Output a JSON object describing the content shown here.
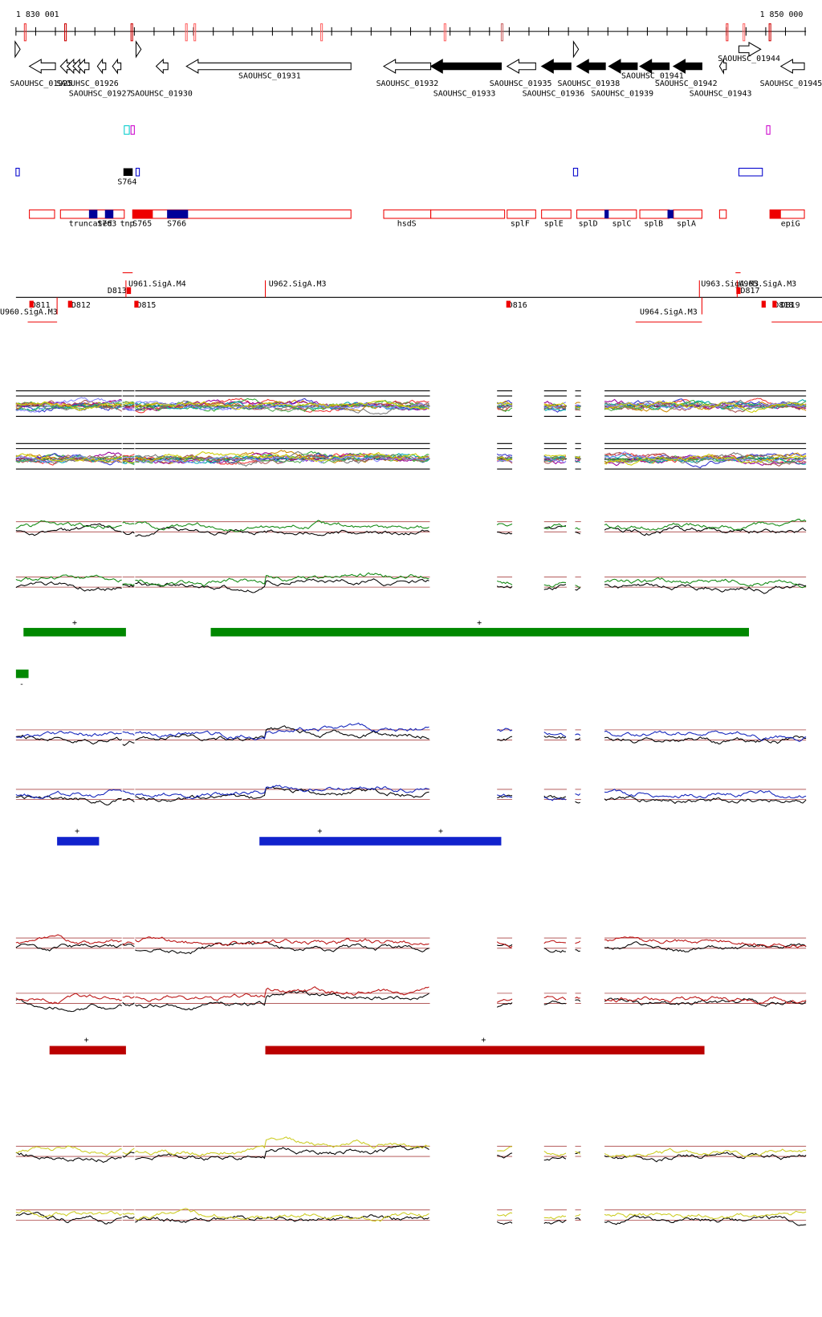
{
  "ruler": {
    "start": "1 830 001",
    "end": "1 850 000"
  },
  "genes": [
    "SAOUHSC_01925",
    "SAOUHSC_01926",
    "SAOUHSC_01927",
    "SAOUHSC_01930",
    "SAOUHSC_01931",
    "SAOUHSC_01932",
    "SAOUHSC_01933",
    "SAOUHSC_01935",
    "SAOUHSC_01936",
    "SAOUHSC_01938",
    "SAOUHSC_01939",
    "SAOUHSC_01941",
    "SAOUHSC_01942",
    "SAOUHSC_01943",
    "SAOUHSC_01944",
    "SAOUHSC_01945"
  ],
  "features": [
    "S764",
    "truncated",
    "S763",
    "tnp",
    "S765",
    "S766",
    "hsdS",
    "splF",
    "splE",
    "splD",
    "splC",
    "splB",
    "splA",
    "epiG"
  ],
  "segments": [
    "U961.SigA.M4",
    "U962.SigA.M3",
    "U963.SigA.M3",
    "U965.SigA.M3",
    "U960.SigA.M3",
    "U964.SigA.M3",
    "D811",
    "D812",
    "D813",
    "D815",
    "D816",
    "D817",
    "D818",
    "D819"
  ],
  "strands": {
    "green": [
      "+",
      "+",
      "-"
    ],
    "blue": [
      "+",
      "+",
      "+"
    ],
    "red": [
      "+",
      "+"
    ]
  }
}
